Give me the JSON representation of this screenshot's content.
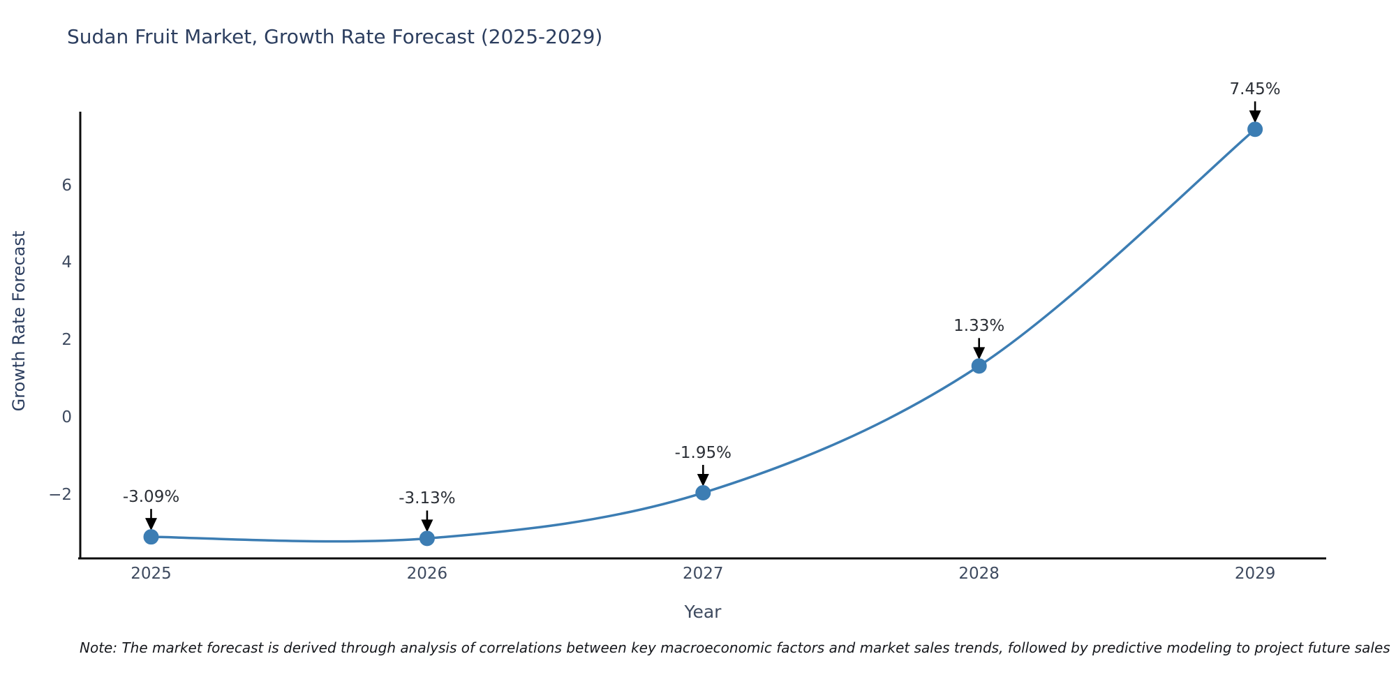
{
  "header": {
    "title": "Sudan Fruit Market, Growth Rate Forecast (2025-2029)"
  },
  "footnote": {
    "text": "Note: The market forecast is derived through analysis of correlations between key macroeconomic factors and market sales trends, followed by predictive modeling to project future sales"
  },
  "chart_data": {
    "type": "line",
    "title": "Sudan Fruit Market, Growth Rate Forecast (2025-2029)",
    "xlabel": "Year",
    "ylabel": "Growth Rate Forecast",
    "categories": [
      "2025",
      "2026",
      "2027",
      "2028",
      "2029"
    ],
    "series": [
      {
        "name": "Growth Rate Forecast",
        "values": [
          -3.09,
          -3.13,
          -1.95,
          1.33,
          7.45
        ]
      }
    ],
    "point_labels": [
      "-3.09%",
      "-3.13%",
      "-1.95%",
      "1.33%",
      "7.45%"
    ],
    "ytick_values": [
      6,
      4,
      2,
      0,
      -2
    ],
    "ytick_labels": [
      "6",
      "4",
      "2",
      "0",
      "−2"
    ],
    "ylim": [
      -3.69,
      7.95
    ],
    "grid": false,
    "legend_position": "none",
    "annotation_style": "arrow-down-to-point",
    "colors": {
      "line": "#3c7db3",
      "marker": "#3c7db3",
      "axis": "#0c0c0c",
      "arrow": "#000000",
      "title": "#2c3e5f",
      "tick_label": "#3e4a5f",
      "annotation": "#2a2e35"
    }
  }
}
